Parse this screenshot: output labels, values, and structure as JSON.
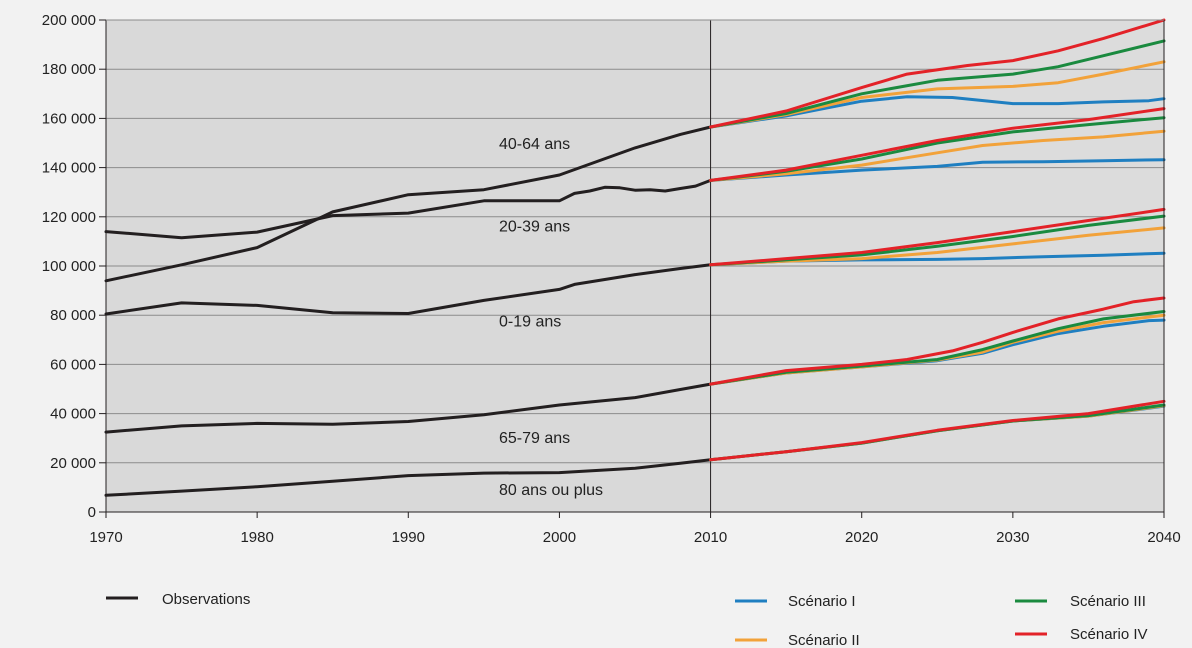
{
  "chart_data": {
    "type": "line",
    "title": "",
    "xlabel": "",
    "ylabel": "",
    "xlim": [
      1970,
      2040
    ],
    "ylim": [
      0,
      200000
    ],
    "x_ticks": [
      1970,
      1980,
      1990,
      2000,
      2010,
      2020,
      2030,
      2040
    ],
    "y_ticks": [
      0,
      20000,
      40000,
      60000,
      80000,
      100000,
      120000,
      140000,
      160000,
      180000,
      200000
    ],
    "y_tick_labels": [
      "0",
      "20 000",
      "40 000",
      "60 000",
      "80 000",
      "100 000",
      "120 000",
      "140 000",
      "160 000",
      "180 000",
      "200 000"
    ],
    "x_tick_labels": [
      "1970",
      "1980",
      "1990",
      "2000",
      "2010",
      "2020",
      "2030",
      "2040"
    ],
    "grid": "horizontal",
    "divider_year": 2010,
    "colors": {
      "plot_bg_observed": "#d9d9d9",
      "plot_bg_projected": "#dcdcdc",
      "observations": "#231f20",
      "scenario_1": "#1f7fc1",
      "scenario_2": "#f2a23a",
      "scenario_3": "#1a8a3f",
      "scenario_4": "#e32228"
    },
    "legend": {
      "observations": "Observations",
      "scenario_1": "Scénario I",
      "scenario_2": "Scénario II",
      "scenario_3": "Scénario III",
      "scenario_4": "Scénario IV"
    },
    "groups": [
      {
        "label": "40-64 ans",
        "label_at": [
          1996,
          149500
        ],
        "observed": [
          [
            1970,
            94000
          ],
          [
            1975,
            100500
          ],
          [
            1980,
            107500
          ],
          [
            1985,
            122000
          ],
          [
            1990,
            129000
          ],
          [
            1995,
            131000
          ],
          [
            2000,
            137000
          ],
          [
            2005,
            148000
          ],
          [
            2008,
            153500
          ],
          [
            2010,
            156500
          ]
        ],
        "scenario_1": [
          [
            2010,
            156500
          ],
          [
            2015,
            161000
          ],
          [
            2020,
            167000
          ],
          [
            2023,
            168800
          ],
          [
            2026,
            168500
          ],
          [
            2030,
            166000
          ],
          [
            2033,
            166000
          ],
          [
            2036,
            166700
          ],
          [
            2039,
            167200
          ],
          [
            2040,
            168000
          ]
        ],
        "scenario_2": [
          [
            2010,
            156500
          ],
          [
            2015,
            161500
          ],
          [
            2020,
            168500
          ],
          [
            2025,
            172000
          ],
          [
            2030,
            173000
          ],
          [
            2033,
            174500
          ],
          [
            2036,
            178000
          ],
          [
            2040,
            183000
          ]
        ],
        "scenario_3": [
          [
            2010,
            156500
          ],
          [
            2015,
            162000
          ],
          [
            2020,
            170000
          ],
          [
            2025,
            175500
          ],
          [
            2030,
            178000
          ],
          [
            2033,
            181000
          ],
          [
            2036,
            185500
          ],
          [
            2040,
            191500
          ]
        ],
        "scenario_4": [
          [
            2010,
            156500
          ],
          [
            2015,
            163000
          ],
          [
            2020,
            172500
          ],
          [
            2023,
            178000
          ],
          [
            2027,
            181500
          ],
          [
            2030,
            183500
          ],
          [
            2033,
            187500
          ],
          [
            2036,
            192500
          ],
          [
            2040,
            200000
          ]
        ]
      },
      {
        "label": "20-39 ans",
        "label_at": [
          1996,
          116000
        ],
        "observed": [
          [
            1970,
            114000
          ],
          [
            1975,
            111500
          ],
          [
            1980,
            113800
          ],
          [
            1985,
            120500
          ],
          [
            1990,
            121500
          ],
          [
            1995,
            126500
          ],
          [
            2000,
            126500
          ],
          [
            2001,
            129500
          ],
          [
            2002,
            130500
          ],
          [
            2003,
            132000
          ],
          [
            2004,
            131800
          ],
          [
            2005,
            130800
          ],
          [
            2006,
            131000
          ],
          [
            2007,
            130500
          ],
          [
            2008,
            131500
          ],
          [
            2009,
            132500
          ],
          [
            2010,
            134800
          ]
        ],
        "scenario_1": [
          [
            2010,
            134800
          ],
          [
            2015,
            137000
          ],
          [
            2020,
            139000
          ],
          [
            2025,
            140500
          ],
          [
            2028,
            142200
          ],
          [
            2032,
            142400
          ],
          [
            2036,
            142800
          ],
          [
            2040,
            143200
          ]
        ],
        "scenario_2": [
          [
            2010,
            134800
          ],
          [
            2015,
            137500
          ],
          [
            2020,
            141000
          ],
          [
            2025,
            146000
          ],
          [
            2028,
            149000
          ],
          [
            2032,
            151000
          ],
          [
            2036,
            152500
          ],
          [
            2040,
            154800
          ]
        ],
        "scenario_3": [
          [
            2010,
            134800
          ],
          [
            2015,
            138500
          ],
          [
            2020,
            143500
          ],
          [
            2025,
            150000
          ],
          [
            2030,
            154500
          ],
          [
            2035,
            157500
          ],
          [
            2040,
            160300
          ]
        ],
        "scenario_4": [
          [
            2010,
            134800
          ],
          [
            2015,
            139000
          ],
          [
            2020,
            145000
          ],
          [
            2025,
            151000
          ],
          [
            2030,
            156000
          ],
          [
            2035,
            159500
          ],
          [
            2040,
            164000
          ]
        ]
      },
      {
        "label": "0-19 ans",
        "label_at": [
          1996,
          77500
        ],
        "observed": [
          [
            1970,
            80500
          ],
          [
            1975,
            85000
          ],
          [
            1980,
            84000
          ],
          [
            1985,
            81000
          ],
          [
            1990,
            80700
          ],
          [
            1995,
            86000
          ],
          [
            2000,
            90500
          ],
          [
            2001,
            92500
          ],
          [
            2003,
            94500
          ],
          [
            2005,
            96500
          ],
          [
            2008,
            99000
          ],
          [
            2010,
            100500
          ]
        ],
        "scenario_1": [
          [
            2010,
            100500
          ],
          [
            2015,
            102000
          ],
          [
            2020,
            102500
          ],
          [
            2025,
            102700
          ],
          [
            2028,
            103000
          ],
          [
            2032,
            103800
          ],
          [
            2036,
            104400
          ],
          [
            2040,
            105200
          ]
        ],
        "scenario_2": [
          [
            2010,
            100500
          ],
          [
            2015,
            102000
          ],
          [
            2020,
            103000
          ],
          [
            2025,
            105500
          ],
          [
            2030,
            109000
          ],
          [
            2035,
            112500
          ],
          [
            2040,
            115500
          ]
        ],
        "scenario_3": [
          [
            2010,
            100500
          ],
          [
            2015,
            102500
          ],
          [
            2020,
            104500
          ],
          [
            2025,
            108000
          ],
          [
            2030,
            112000
          ],
          [
            2035,
            116500
          ],
          [
            2040,
            120300
          ]
        ],
        "scenario_4": [
          [
            2010,
            100500
          ],
          [
            2015,
            103000
          ],
          [
            2020,
            105500
          ],
          [
            2025,
            109500
          ],
          [
            2030,
            114000
          ],
          [
            2035,
            118500
          ],
          [
            2040,
            123000
          ]
        ]
      },
      {
        "label": "65-79 ans",
        "label_at": [
          1996,
          30000
        ],
        "observed": [
          [
            1970,
            32500
          ],
          [
            1975,
            35000
          ],
          [
            1980,
            36000
          ],
          [
            1985,
            35700
          ],
          [
            1990,
            36800
          ],
          [
            1995,
            39500
          ],
          [
            2000,
            43500
          ],
          [
            2005,
            46500
          ],
          [
            2008,
            49800
          ],
          [
            2010,
            52000
          ]
        ],
        "scenario_1": [
          [
            2010,
            52000
          ],
          [
            2015,
            56500
          ],
          [
            2020,
            59000
          ],
          [
            2025,
            61500
          ],
          [
            2028,
            64500
          ],
          [
            2030,
            68000
          ],
          [
            2033,
            72500
          ],
          [
            2036,
            75500
          ],
          [
            2039,
            77800
          ],
          [
            2040,
            78000
          ]
        ],
        "scenario_2": [
          [
            2010,
            52000
          ],
          [
            2015,
            56500
          ],
          [
            2020,
            59000
          ],
          [
            2025,
            61800
          ],
          [
            2028,
            65000
          ],
          [
            2030,
            69000
          ],
          [
            2033,
            73500
          ],
          [
            2036,
            77000
          ],
          [
            2040,
            80000
          ]
        ],
        "scenario_3": [
          [
            2010,
            52000
          ],
          [
            2015,
            56800
          ],
          [
            2020,
            59300
          ],
          [
            2025,
            62000
          ],
          [
            2028,
            66000
          ],
          [
            2030,
            69500
          ],
          [
            2033,
            74500
          ],
          [
            2036,
            78500
          ],
          [
            2040,
            81500
          ]
        ],
        "scenario_4": [
          [
            2010,
            52000
          ],
          [
            2015,
            57500
          ],
          [
            2020,
            60000
          ],
          [
            2023,
            62000
          ],
          [
            2026,
            65500
          ],
          [
            2028,
            69000
          ],
          [
            2030,
            73000
          ],
          [
            2033,
            78500
          ],
          [
            2036,
            82500
          ],
          [
            2038,
            85500
          ],
          [
            2040,
            87000
          ]
        ]
      },
      {
        "label": "80 ans ou plus",
        "label_at": [
          1996,
          9000
        ],
        "observed": [
          [
            1970,
            6800
          ],
          [
            1975,
            8500
          ],
          [
            1980,
            10300
          ],
          [
            1985,
            12500
          ],
          [
            1990,
            14800
          ],
          [
            1995,
            15800
          ],
          [
            2000,
            16000
          ],
          [
            2005,
            17800
          ],
          [
            2008,
            19800
          ],
          [
            2010,
            21200
          ]
        ],
        "scenario_1": [
          [
            2010,
            21200
          ],
          [
            2015,
            24500
          ],
          [
            2020,
            28000
          ],
          [
            2025,
            33000
          ],
          [
            2030,
            37000
          ],
          [
            2035,
            39000
          ],
          [
            2040,
            43000
          ]
        ],
        "scenario_2": [
          [
            2010,
            21200
          ],
          [
            2015,
            24500
          ],
          [
            2020,
            28000
          ],
          [
            2025,
            33000
          ],
          [
            2030,
            37000
          ],
          [
            2035,
            39000
          ],
          [
            2040,
            43200
          ]
        ],
        "scenario_3": [
          [
            2010,
            21200
          ],
          [
            2015,
            24500
          ],
          [
            2020,
            28000
          ],
          [
            2025,
            33000
          ],
          [
            2030,
            37000
          ],
          [
            2035,
            39200
          ],
          [
            2040,
            43500
          ]
        ],
        "scenario_4": [
          [
            2010,
            21200
          ],
          [
            2015,
            24500
          ],
          [
            2020,
            28200
          ],
          [
            2025,
            33200
          ],
          [
            2030,
            37200
          ],
          [
            2035,
            40000
          ],
          [
            2040,
            45000
          ]
        ]
      }
    ]
  }
}
